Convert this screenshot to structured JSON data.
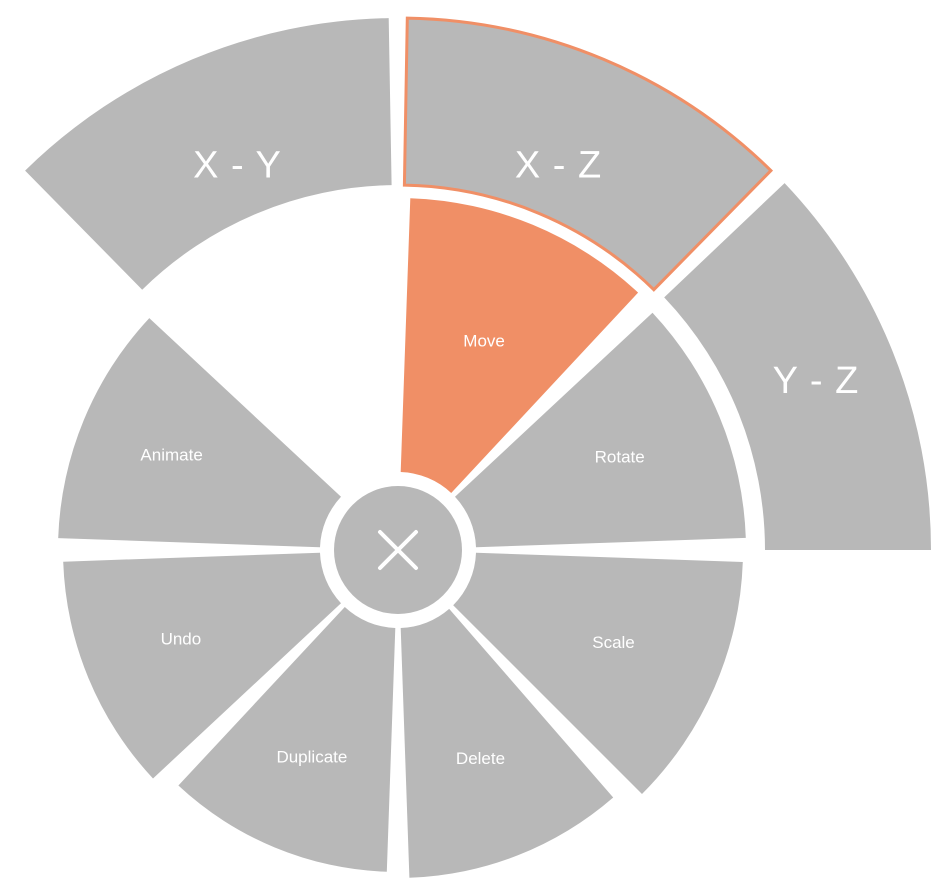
{
  "colors": {
    "wedge": "#b8b8b8",
    "active": "#f08f66",
    "outline": "#f08f66",
    "icon": "#ffffff",
    "background": "#ffffff"
  },
  "inner_ring": [
    {
      "id": "move",
      "label": "Move",
      "active": true
    },
    {
      "id": "rotate",
      "label": "Rotate",
      "active": false
    },
    {
      "id": "scale",
      "label": "Scale",
      "active": false
    },
    {
      "id": "delete",
      "label": "Delete",
      "active": false
    },
    {
      "id": "duplicate",
      "label": "Duplicate",
      "active": false
    },
    {
      "id": "undo",
      "label": "Undo",
      "active": false
    },
    {
      "id": "animate",
      "label": "Animate",
      "active": false
    }
  ],
  "outer_ring": [
    {
      "id": "x-y",
      "label": "X - Y",
      "highlighted": false
    },
    {
      "id": "x-z",
      "label": "X - Z",
      "highlighted": true
    },
    {
      "id": "y-z",
      "label": "Y - Z",
      "highlighted": false
    }
  ],
  "center": {
    "icon": "close-icon"
  }
}
